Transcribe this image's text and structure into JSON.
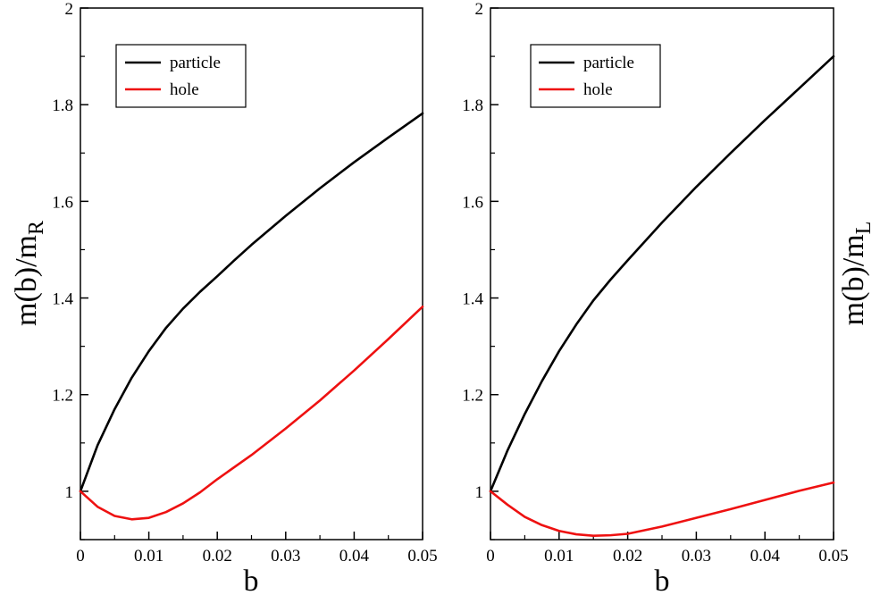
{
  "chart_data": [
    {
      "type": "line",
      "panel": "left",
      "title": "",
      "xlabel": "b",
      "ylabel_main": "m(b)/m",
      "ylabel_sub": "R",
      "ylabel_side": "left",
      "xlim": [
        0,
        0.05
      ],
      "ylim": [
        0.9,
        2.0
      ],
      "xticks": [
        "0",
        "0.01",
        "0.02",
        "0.03",
        "0.04",
        "0.05"
      ],
      "xtick_values": [
        0,
        0.01,
        0.02,
        0.03,
        0.04,
        0.05
      ],
      "yticks": [
        "1",
        "1.2",
        "1.4",
        "1.6",
        "1.8",
        "2"
      ],
      "ytick_values": [
        1.0,
        1.2,
        1.4,
        1.6,
        1.8,
        2.0
      ],
      "grid": false,
      "legend_position": "top-left",
      "series": [
        {
          "name": "particle",
          "color": "#000000",
          "x": [
            0,
            0.0025,
            0.005,
            0.0075,
            0.01,
            0.0125,
            0.015,
            0.0175,
            0.02,
            0.0225,
            0.025,
            0.03,
            0.035,
            0.04,
            0.045,
            0.05
          ],
          "y": [
            1.0,
            1.095,
            1.17,
            1.235,
            1.29,
            1.338,
            1.378,
            1.413,
            1.445,
            1.478,
            1.51,
            1.57,
            1.627,
            1.681,
            1.732,
            1.782
          ]
        },
        {
          "name": "hole",
          "color": "#ee1111",
          "x": [
            0,
            0.0025,
            0.005,
            0.0075,
            0.01,
            0.0125,
            0.015,
            0.0175,
            0.02,
            0.025,
            0.03,
            0.035,
            0.04,
            0.045,
            0.05
          ],
          "y": [
            1.0,
            0.968,
            0.949,
            0.942,
            0.945,
            0.957,
            0.975,
            0.998,
            1.025,
            1.075,
            1.13,
            1.188,
            1.25,
            1.315,
            1.382
          ]
        }
      ]
    },
    {
      "type": "line",
      "panel": "right",
      "title": "",
      "xlabel": "b",
      "ylabel_main": "m(b)/m",
      "ylabel_sub": "L",
      "ylabel_side": "right",
      "xlim": [
        0,
        0.05
      ],
      "ylim": [
        0.9,
        2.0
      ],
      "xticks": [
        "0",
        "0.01",
        "0.02",
        "0.03",
        "0.04",
        "0.05"
      ],
      "xtick_values": [
        0,
        0.01,
        0.02,
        0.03,
        0.04,
        0.05
      ],
      "yticks": [
        "1",
        "1.2",
        "1.4",
        "1.6",
        "1.8",
        "2"
      ],
      "ytick_values": [
        1.0,
        1.2,
        1.4,
        1.6,
        1.8,
        2.0
      ],
      "grid": false,
      "legend_position": "top-left",
      "series": [
        {
          "name": "particle",
          "color": "#000000",
          "x": [
            0,
            0.0025,
            0.005,
            0.0075,
            0.01,
            0.0125,
            0.015,
            0.0175,
            0.02,
            0.025,
            0.03,
            0.035,
            0.04,
            0.045,
            0.05
          ],
          "y": [
            1.0,
            1.085,
            1.16,
            1.228,
            1.29,
            1.345,
            1.395,
            1.438,
            1.478,
            1.556,
            1.63,
            1.7,
            1.768,
            1.834,
            1.9
          ]
        },
        {
          "name": "hole",
          "color": "#ee1111",
          "x": [
            0,
            0.0025,
            0.005,
            0.0075,
            0.01,
            0.0125,
            0.015,
            0.0175,
            0.02,
            0.025,
            0.03,
            0.035,
            0.04,
            0.045,
            0.05
          ],
          "y": [
            1.0,
            0.972,
            0.947,
            0.93,
            0.918,
            0.911,
            0.908,
            0.909,
            0.912,
            0.927,
            0.945,
            0.963,
            0.982,
            1.001,
            1.018
          ]
        }
      ]
    }
  ]
}
